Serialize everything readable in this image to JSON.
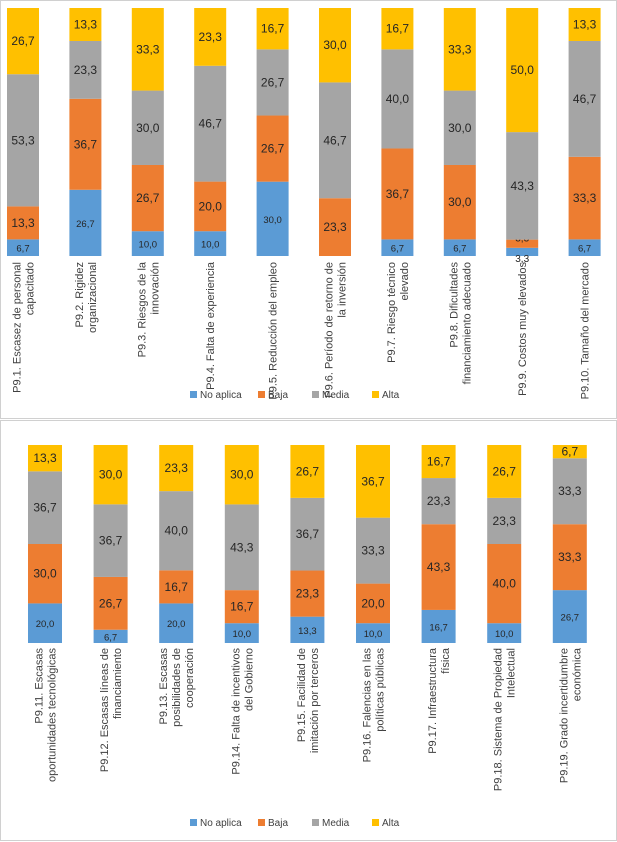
{
  "chart_data": [
    {
      "type": "bar",
      "stacked": "100%",
      "categories": [
        "P9.1. Escasez de personal capacitado",
        "P9.2. Rigidez organizacional",
        "P9.3. Riesgos de la innovación",
        "P9.4. Falta de experiencia",
        "P9.5. Reducción del empleo",
        "P9.6. Período de retorno de la inversión",
        "P9.7. Riesgo técnico elevado",
        "P9.8. Dificultades financiamiento adecuado",
        "P9.9. Costos muy elevados",
        "P9.10. Tamaño del mercado"
      ],
      "series": [
        {
          "name": "No aplica",
          "color": "#5b9bd5",
          "values": [
            6.7,
            26.7,
            10.0,
            10.0,
            30.0,
            0,
            6.7,
            6.7,
            3.3,
            6.7
          ]
        },
        {
          "name": "Baja",
          "color": "#ed7d31",
          "values": [
            13.3,
            36.7,
            26.7,
            20.0,
            26.7,
            23.3,
            36.7,
            30.0,
            3.3,
            33.3
          ]
        },
        {
          "name": "Media",
          "color": "#a5a5a5",
          "values": [
            53.3,
            23.3,
            30.0,
            46.7,
            26.7,
            46.7,
            40.0,
            30.0,
            43.3,
            46.7
          ]
        },
        {
          "name": "Alta",
          "color": "#ffc000",
          "values": [
            26.7,
            13.3,
            33.3,
            23.3,
            16.7,
            30.0,
            16.7,
            33.3,
            50.0,
            13.3
          ]
        }
      ],
      "legend": "bottom",
      "grid": false
    },
    {
      "type": "bar",
      "stacked": "100%",
      "categories": [
        "P9.11. Escasas oportunidades tecnológicas",
        "P9.12. Escasas líneas de financiamiento",
        "P9.13. Escasas posibilidades de cooperación",
        "P9.14. Falta de incentivos del Gobierno",
        "P9.15. Facilidad de imitación por terceros",
        "P9.16. Falencias en las políticas públicas",
        "P9.17. Infraestructura física",
        "P9.18. Sistema de Propiedad Intelectual",
        "P9.19. Grado incertidumbre económica"
      ],
      "series": [
        {
          "name": "No aplica",
          "color": "#5b9bd5",
          "values": [
            20.0,
            6.7,
            20.0,
            10.0,
            13.3,
            10.0,
            16.7,
            10.0,
            26.7
          ]
        },
        {
          "name": "Baja",
          "color": "#ed7d31",
          "values": [
            30.0,
            26.7,
            16.7,
            16.7,
            23.3,
            20.0,
            43.3,
            40.0,
            33.3
          ]
        },
        {
          "name": "Media",
          "color": "#a5a5a5",
          "values": [
            36.7,
            36.7,
            40.0,
            43.3,
            36.7,
            33.3,
            23.3,
            23.3,
            33.3
          ]
        },
        {
          "name": "Alta",
          "color": "#ffc000",
          "values": [
            13.3,
            30.0,
            23.3,
            30.0,
            26.7,
            36.7,
            16.7,
            26.7,
            6.7
          ]
        }
      ],
      "legend": "bottom",
      "grid": false
    }
  ]
}
